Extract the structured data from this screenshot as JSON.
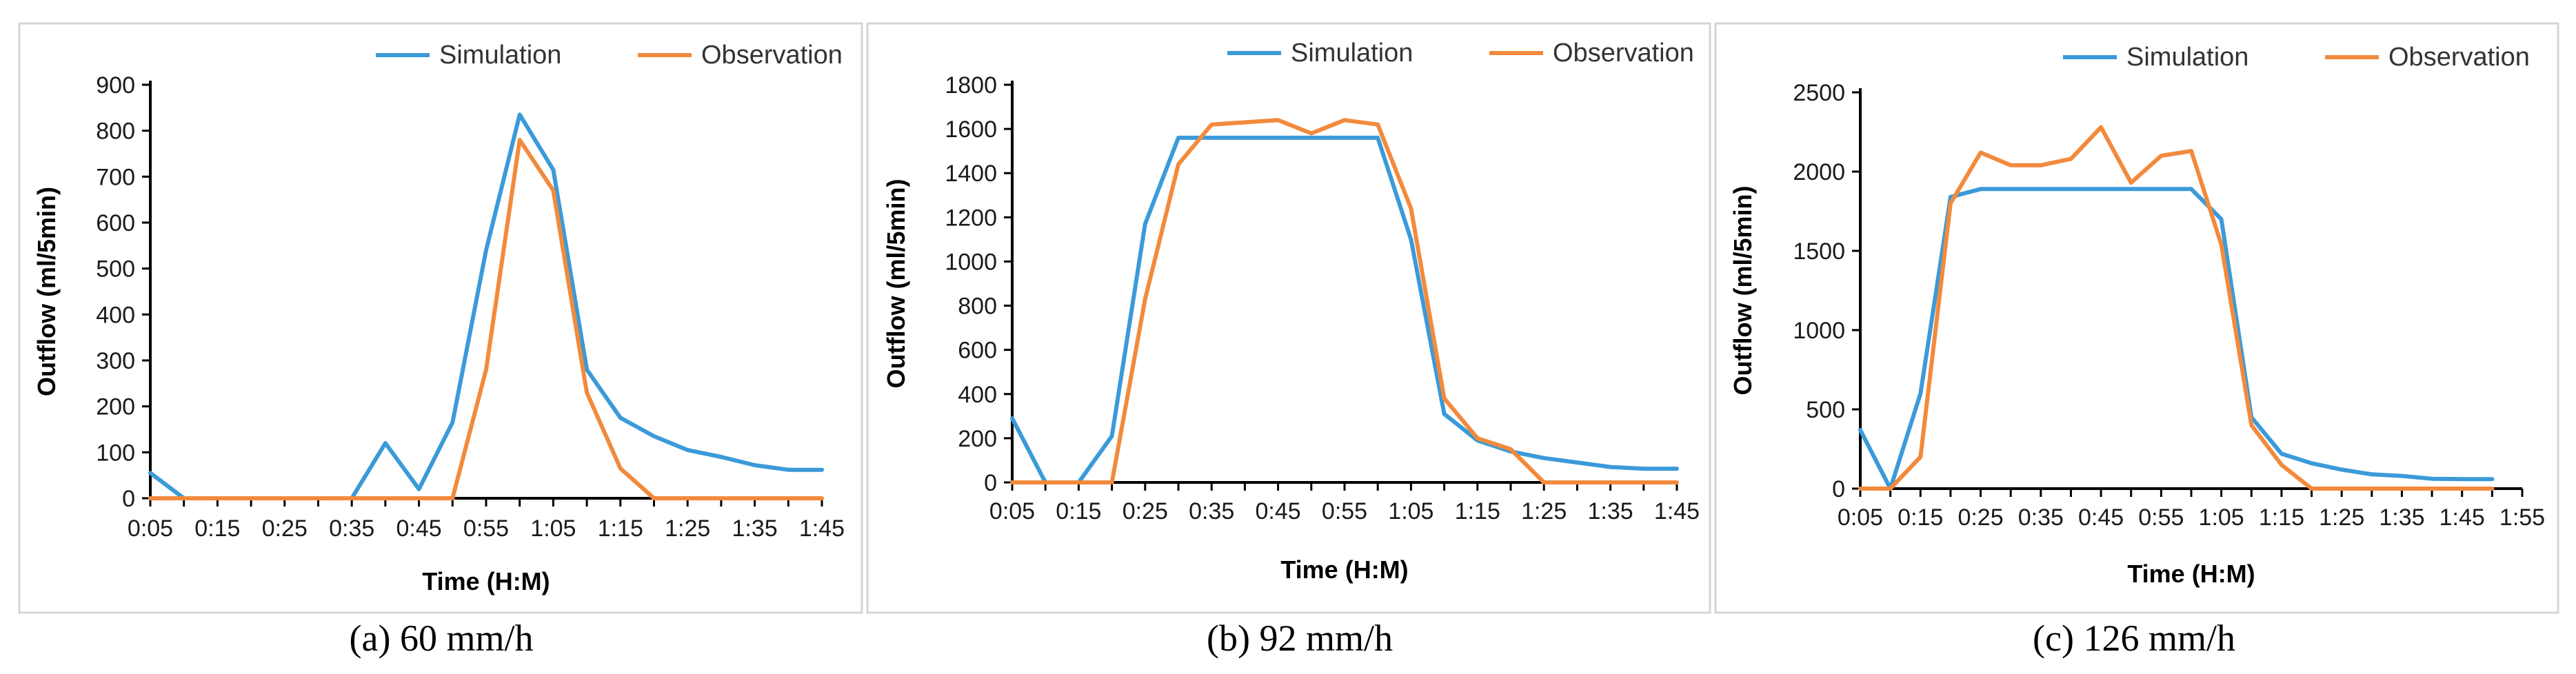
{
  "colors": {
    "simulation": "#3b9ad9",
    "observation": "#f28a3c"
  },
  "chart_data": [
    {
      "type": "line",
      "caption": "(a) 60 mm/h",
      "xlabel": "Time (H:M)",
      "ylabel": "Outflow (ml/5min)",
      "ylim": [
        0,
        900
      ],
      "yticks": [
        0,
        100,
        200,
        300,
        400,
        500,
        600,
        700,
        800,
        900
      ],
      "x_count": 20,
      "x_tick_labels": [
        "0:05",
        "0:15",
        "0:25",
        "0:35",
        "0:45",
        "0:55",
        "1:05",
        "1:15",
        "1:25",
        "1:35",
        "1:45"
      ],
      "x_tick_positions": [
        0,
        2,
        4,
        6,
        8,
        10,
        12,
        14,
        16,
        18,
        20
      ],
      "legend": [
        "Simulation",
        "Observation"
      ],
      "series": [
        {
          "name": "Simulation",
          "values": [
            55,
            0,
            0,
            0,
            0,
            0,
            0,
            120,
            20,
            165,
            540,
            835,
            715,
            280,
            175,
            135,
            105,
            90,
            72,
            62,
            62
          ]
        },
        {
          "name": "Observation",
          "values": [
            0,
            0,
            0,
            0,
            0,
            0,
            0,
            0,
            0,
            0,
            280,
            780,
            670,
            230,
            65,
            0,
            0,
            0,
            0,
            0,
            0
          ]
        }
      ]
    },
    {
      "type": "line",
      "caption": "(b) 92 mm/h",
      "xlabel": "Time (H:M)",
      "ylabel": "Outflow (ml/5min)",
      "ylim": [
        0,
        1800
      ],
      "yticks": [
        0,
        200,
        400,
        600,
        800,
        1000,
        1200,
        1400,
        1600,
        1800
      ],
      "x_count": 20,
      "x_tick_labels": [
        "0:05",
        "0:15",
        "0:25",
        "0:35",
        "0:45",
        "0:55",
        "1:05",
        "1:15",
        "1:25",
        "1:35",
        "1:45"
      ],
      "x_tick_positions": [
        0,
        2,
        4,
        6,
        8,
        10,
        12,
        14,
        16,
        18,
        20
      ],
      "legend": [
        "Simulation",
        "Observation"
      ],
      "series": [
        {
          "name": "Simulation",
          "values": [
            290,
            0,
            0,
            210,
            1170,
            1560,
            1560,
            1560,
            1560,
            1560,
            1560,
            1560,
            1100,
            310,
            190,
            140,
            110,
            90,
            70,
            62,
            62
          ]
        },
        {
          "name": "Observation",
          "values": [
            0,
            0,
            0,
            0,
            830,
            1440,
            1620,
            1630,
            1640,
            1580,
            1640,
            1620,
            1240,
            380,
            200,
            150,
            0,
            0,
            0,
            0,
            0
          ]
        }
      ]
    },
    {
      "type": "line",
      "caption": "(c) 126 mm/h",
      "xlabel": "Time (H:M)",
      "ylabel": "Outflow (ml/5min)",
      "ylim": [
        0,
        2500
      ],
      "yticks": [
        0,
        500,
        1000,
        1500,
        2000,
        2500
      ],
      "x_count": 22,
      "x_tick_labels": [
        "0:05",
        "0:15",
        "0:25",
        "0:35",
        "0:45",
        "0:55",
        "1:05",
        "1:15",
        "1:25",
        "1:35",
        "1:45",
        "1:55"
      ],
      "x_tick_positions": [
        0,
        2,
        4,
        6,
        8,
        10,
        12,
        14,
        16,
        18,
        20,
        22
      ],
      "legend": [
        "Simulation",
        "Observation"
      ],
      "series": [
        {
          "name": "Simulation",
          "values": [
            370,
            0,
            600,
            1840,
            1890,
            1890,
            1890,
            1890,
            1890,
            1890,
            1890,
            1890,
            1700,
            450,
            220,
            160,
            120,
            90,
            80,
            62,
            60,
            60
          ]
        },
        {
          "name": "Observation",
          "values": [
            0,
            0,
            200,
            1800,
            2120,
            2040,
            2040,
            2080,
            2280,
            1930,
            2100,
            2130,
            1540,
            400,
            150,
            0,
            0,
            0,
            0,
            0,
            0,
            0
          ]
        }
      ]
    }
  ]
}
